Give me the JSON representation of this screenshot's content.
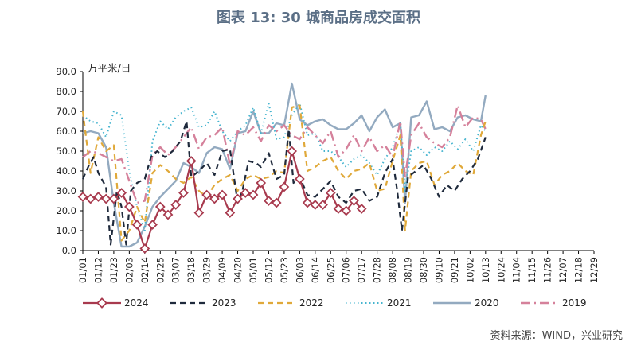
{
  "title": "图表 13: 30 城商品房成交面积",
  "source": "资料来源：WIND，兴业研究",
  "chart_data": {
    "type": "line",
    "title": "图表 13: 30 城商品房成交面积",
    "ylabel": "万平米/日",
    "ylim": [
      0,
      90
    ],
    "yticks": [
      "0.0",
      "10.0",
      "20.0",
      "30.0",
      "40.0",
      "50.0",
      "60.0",
      "70.0",
      "80.0",
      "90.0"
    ],
    "categories": [
      "01/01",
      "01/12",
      "01/23",
      "02/03",
      "02/14",
      "02/25",
      "03/07",
      "03/18",
      "03/29",
      "04/09",
      "04/20",
      "05/01",
      "05/12",
      "05/23",
      "06/03",
      "06/14",
      "06/25",
      "07/06",
      "07/17",
      "07/28",
      "08/08",
      "08/19",
      "08/30",
      "09/10",
      "09/21",
      "10/02",
      "10/13",
      "10/24",
      "11/04",
      "11/15",
      "11/26",
      "12/07",
      "12/18",
      "12/29"
    ],
    "legend_position": "bottom",
    "series": [
      {
        "name": "2024",
        "color": "#a83a4e",
        "style": "solid-marker",
        "points": [
          [
            0,
            27
          ],
          [
            0.5,
            26
          ],
          [
            1,
            27
          ],
          [
            1.5,
            26
          ],
          [
            2,
            26
          ],
          [
            2.5,
            29
          ],
          [
            3,
            22
          ],
          [
            3.5,
            13
          ],
          [
            4,
            1
          ],
          [
            4.5,
            13
          ],
          [
            5,
            22
          ],
          [
            5.5,
            18
          ],
          [
            6,
            23
          ],
          [
            6.5,
            29
          ],
          [
            7,
            45
          ],
          [
            7.5,
            19
          ],
          [
            8,
            28
          ],
          [
            8.5,
            26
          ],
          [
            9,
            28
          ],
          [
            9.5,
            19
          ],
          [
            10,
            26
          ],
          [
            10.5,
            29
          ],
          [
            11,
            28
          ],
          [
            11.5,
            34
          ],
          [
            12,
            25
          ],
          [
            12.5,
            24
          ],
          [
            13,
            32
          ],
          [
            13.5,
            50
          ],
          [
            14,
            36
          ],
          [
            14.5,
            24
          ],
          [
            15,
            23
          ],
          [
            15.5,
            23
          ],
          [
            16,
            29
          ],
          [
            16.5,
            21
          ],
          [
            17,
            20
          ],
          [
            17.5,
            25
          ],
          [
            18,
            21
          ]
        ]
      },
      {
        "name": "2023",
        "color": "#1f2a3c",
        "style": "dashed",
        "points": [
          [
            0,
            36
          ],
          [
            0.4,
            43
          ],
          [
            0.7,
            47
          ],
          [
            1,
            39
          ],
          [
            1.5,
            32
          ],
          [
            1.8,
            3
          ],
          [
            2.2,
            30
          ],
          [
            2.5,
            22
          ],
          [
            2.8,
            3
          ],
          [
            3.1,
            30
          ],
          [
            3.5,
            34
          ],
          [
            4,
            36
          ],
          [
            4.4,
            47
          ],
          [
            4.8,
            50
          ],
          [
            5.3,
            47
          ],
          [
            5.8,
            50
          ],
          [
            6.3,
            55
          ],
          [
            6.7,
            65
          ],
          [
            7,
            37
          ],
          [
            7.5,
            40
          ],
          [
            8,
            44
          ],
          [
            8.5,
            38
          ],
          [
            9,
            50
          ],
          [
            9.5,
            51
          ],
          [
            10,
            24
          ],
          [
            10.3,
            30
          ],
          [
            10.7,
            45
          ],
          [
            11.2,
            44
          ],
          [
            11.5,
            42
          ],
          [
            12,
            49
          ],
          [
            12.5,
            36
          ],
          [
            13,
            38
          ],
          [
            13.3,
            61
          ],
          [
            13.6,
            34
          ],
          [
            14,
            37
          ],
          [
            14.5,
            28
          ],
          [
            15,
            27
          ],
          [
            15.5,
            31
          ],
          [
            16,
            35
          ],
          [
            16.5,
            27
          ],
          [
            17,
            24
          ],
          [
            17.5,
            30
          ],
          [
            18,
            31
          ],
          [
            18.5,
            25
          ],
          [
            19,
            27
          ],
          [
            19.5,
            39
          ],
          [
            20,
            46
          ],
          [
            20.3,
            30
          ],
          [
            20.6,
            10
          ],
          [
            21,
            37
          ],
          [
            21.5,
            40
          ],
          [
            22,
            43
          ],
          [
            22.5,
            36
          ],
          [
            23,
            27
          ],
          [
            23.5,
            33
          ],
          [
            24,
            30
          ],
          [
            24.5,
            36
          ],
          [
            25,
            40
          ],
          [
            25.5,
            46
          ],
          [
            26,
            57
          ]
        ]
      },
      {
        "name": "2022",
        "color": "#e0a93a",
        "style": "dashed",
        "points": [
          [
            0,
            70
          ],
          [
            0.5,
            39
          ],
          [
            1,
            57
          ],
          [
            1.5,
            50
          ],
          [
            2,
            53
          ],
          [
            2.5,
            5
          ],
          [
            3,
            10
          ],
          [
            3.5,
            22
          ],
          [
            4,
            14
          ],
          [
            4.5,
            39
          ],
          [
            5,
            43
          ],
          [
            5.5,
            40
          ],
          [
            6,
            36
          ],
          [
            6.5,
            34
          ],
          [
            7,
            37
          ],
          [
            7.5,
            30
          ],
          [
            8,
            27
          ],
          [
            8.5,
            33
          ],
          [
            9,
            36
          ],
          [
            9.5,
            38
          ],
          [
            10,
            30
          ],
          [
            10.5,
            36
          ],
          [
            11,
            38
          ],
          [
            11.5,
            36
          ],
          [
            12,
            37
          ],
          [
            12.5,
            40
          ],
          [
            13,
            39
          ],
          [
            13.5,
            72
          ],
          [
            14,
            73
          ],
          [
            14.5,
            40
          ],
          [
            15,
            42
          ],
          [
            15.5,
            45
          ],
          [
            16,
            47
          ],
          [
            16.5,
            40
          ],
          [
            17,
            36
          ],
          [
            17.5,
            40
          ],
          [
            18,
            41
          ],
          [
            18.5,
            44
          ],
          [
            19,
            30
          ],
          [
            19.5,
            31
          ],
          [
            20,
            45
          ],
          [
            20.5,
            58
          ],
          [
            20.8,
            10
          ],
          [
            21.2,
            40
          ],
          [
            21.7,
            44
          ],
          [
            22.2,
            45
          ],
          [
            22.7,
            33
          ],
          [
            23.2,
            38
          ],
          [
            23.7,
            40
          ],
          [
            24.2,
            44
          ],
          [
            24.7,
            40
          ],
          [
            25.2,
            38
          ],
          [
            25.7,
            58
          ],
          [
            26,
            65
          ]
        ]
      },
      {
        "name": "2021",
        "color": "#45b4cf",
        "style": "dotted",
        "points": [
          [
            0,
            68
          ],
          [
            0.5,
            65
          ],
          [
            1,
            64
          ],
          [
            1.5,
            57
          ],
          [
            2,
            70
          ],
          [
            2.5,
            68
          ],
          [
            3,
            40
          ],
          [
            3.5,
            22
          ],
          [
            4,
            10
          ],
          [
            4.5,
            55
          ],
          [
            5,
            65
          ],
          [
            5.5,
            61
          ],
          [
            6,
            67
          ],
          [
            6.5,
            70
          ],
          [
            7,
            72
          ],
          [
            7.5,
            62
          ],
          [
            8,
            63
          ],
          [
            8.5,
            70
          ],
          [
            9,
            60
          ],
          [
            9.5,
            55
          ],
          [
            10,
            60
          ],
          [
            10.5,
            63
          ],
          [
            11,
            72
          ],
          [
            11.5,
            59
          ],
          [
            12,
            74
          ],
          [
            12.5,
            56
          ],
          [
            13,
            57
          ],
          [
            13.5,
            68
          ],
          [
            14,
            74
          ],
          [
            14.5,
            58
          ],
          [
            15,
            59
          ],
          [
            15.5,
            50
          ],
          [
            16,
            50
          ],
          [
            16.5,
            47
          ],
          [
            17,
            42
          ],
          [
            17.5,
            46
          ],
          [
            18,
            48
          ],
          [
            18.5,
            44
          ],
          [
            19,
            38
          ],
          [
            19.5,
            46
          ],
          [
            20,
            52
          ],
          [
            20.5,
            64
          ],
          [
            20.8,
            30
          ],
          [
            21.2,
            50
          ],
          [
            21.7,
            52
          ],
          [
            22.2,
            48
          ],
          [
            22.7,
            52
          ],
          [
            23.2,
            50
          ],
          [
            23.7,
            55
          ],
          [
            24.2,
            51
          ],
          [
            24.7,
            56
          ],
          [
            25.2,
            50
          ],
          [
            25.7,
            63
          ],
          [
            26,
            60
          ]
        ]
      },
      {
        "name": "2020",
        "color": "#93aac0",
        "style": "solid",
        "points": [
          [
            0,
            59
          ],
          [
            0.5,
            60
          ],
          [
            1,
            59
          ],
          [
            1.5,
            52
          ],
          [
            2,
            24
          ],
          [
            2.5,
            2
          ],
          [
            3,
            2
          ],
          [
            3.5,
            4
          ],
          [
            4,
            12
          ],
          [
            4.5,
            22
          ],
          [
            5,
            27
          ],
          [
            5.5,
            31
          ],
          [
            6,
            35
          ],
          [
            6.5,
            44
          ],
          [
            7,
            42
          ],
          [
            7.5,
            39
          ],
          [
            8,
            49
          ],
          [
            8.5,
            52
          ],
          [
            9,
            51
          ],
          [
            9.5,
            41
          ],
          [
            10,
            59
          ],
          [
            10.5,
            60
          ],
          [
            11,
            70
          ],
          [
            11.5,
            59
          ],
          [
            12,
            59
          ],
          [
            12.5,
            64
          ],
          [
            13,
            63
          ],
          [
            13.5,
            84
          ],
          [
            14,
            66
          ],
          [
            14.5,
            63
          ],
          [
            15,
            65
          ],
          [
            15.5,
            66
          ],
          [
            16,
            63
          ],
          [
            16.5,
            61
          ],
          [
            17,
            61
          ],
          [
            17.5,
            64
          ],
          [
            18,
            68
          ],
          [
            18.5,
            60
          ],
          [
            19,
            67
          ],
          [
            19.5,
            71
          ],
          [
            20,
            62
          ],
          [
            20.5,
            64
          ],
          [
            20.8,
            24
          ],
          [
            21.2,
            67
          ],
          [
            21.7,
            68
          ],
          [
            22.2,
            75
          ],
          [
            22.7,
            61
          ],
          [
            23.2,
            62
          ],
          [
            23.7,
            60
          ],
          [
            24.2,
            67
          ],
          [
            24.7,
            68
          ],
          [
            25.2,
            66
          ],
          [
            25.7,
            65
          ],
          [
            26,
            78
          ]
        ]
      },
      {
        "name": "2019",
        "color": "#d5819b",
        "style": "dashdot",
        "points": [
          [
            0,
            47
          ],
          [
            0.5,
            50
          ],
          [
            1,
            49
          ],
          [
            1.5,
            47
          ],
          [
            2,
            45
          ],
          [
            2.5,
            46
          ],
          [
            3,
            35
          ],
          [
            3.5,
            24
          ],
          [
            4,
            25
          ],
          [
            4.5,
            48
          ],
          [
            5,
            52
          ],
          [
            5.5,
            48
          ],
          [
            6,
            52
          ],
          [
            6.5,
            57
          ],
          [
            7,
            62
          ],
          [
            7.5,
            51
          ],
          [
            8,
            57
          ],
          [
            8.5,
            58
          ],
          [
            9,
            62
          ],
          [
            9.5,
            43
          ],
          [
            10,
            60
          ],
          [
            10.5,
            58
          ],
          [
            11,
            62
          ],
          [
            11.5,
            55
          ],
          [
            12,
            63
          ],
          [
            12.5,
            60
          ],
          [
            13,
            63
          ],
          [
            13.5,
            58
          ],
          [
            14,
            56
          ],
          [
            14.5,
            62
          ],
          [
            15,
            58
          ],
          [
            15.5,
            54
          ],
          [
            16,
            60
          ],
          [
            16.5,
            47
          ],
          [
            17,
            51
          ],
          [
            17.5,
            58
          ],
          [
            18,
            50
          ],
          [
            18.5,
            57
          ],
          [
            19,
            50
          ],
          [
            19.5,
            53
          ],
          [
            20,
            47
          ],
          [
            20.5,
            65
          ],
          [
            20.8,
            37
          ],
          [
            21.2,
            58
          ],
          [
            21.7,
            64
          ],
          [
            22.2,
            57
          ],
          [
            22.7,
            54
          ],
          [
            23.2,
            52
          ],
          [
            23.7,
            57
          ],
          [
            24.2,
            73
          ],
          [
            24.7,
            62
          ],
          [
            25.2,
            67
          ],
          [
            25.7,
            66
          ],
          [
            26,
            61
          ]
        ]
      }
    ]
  }
}
